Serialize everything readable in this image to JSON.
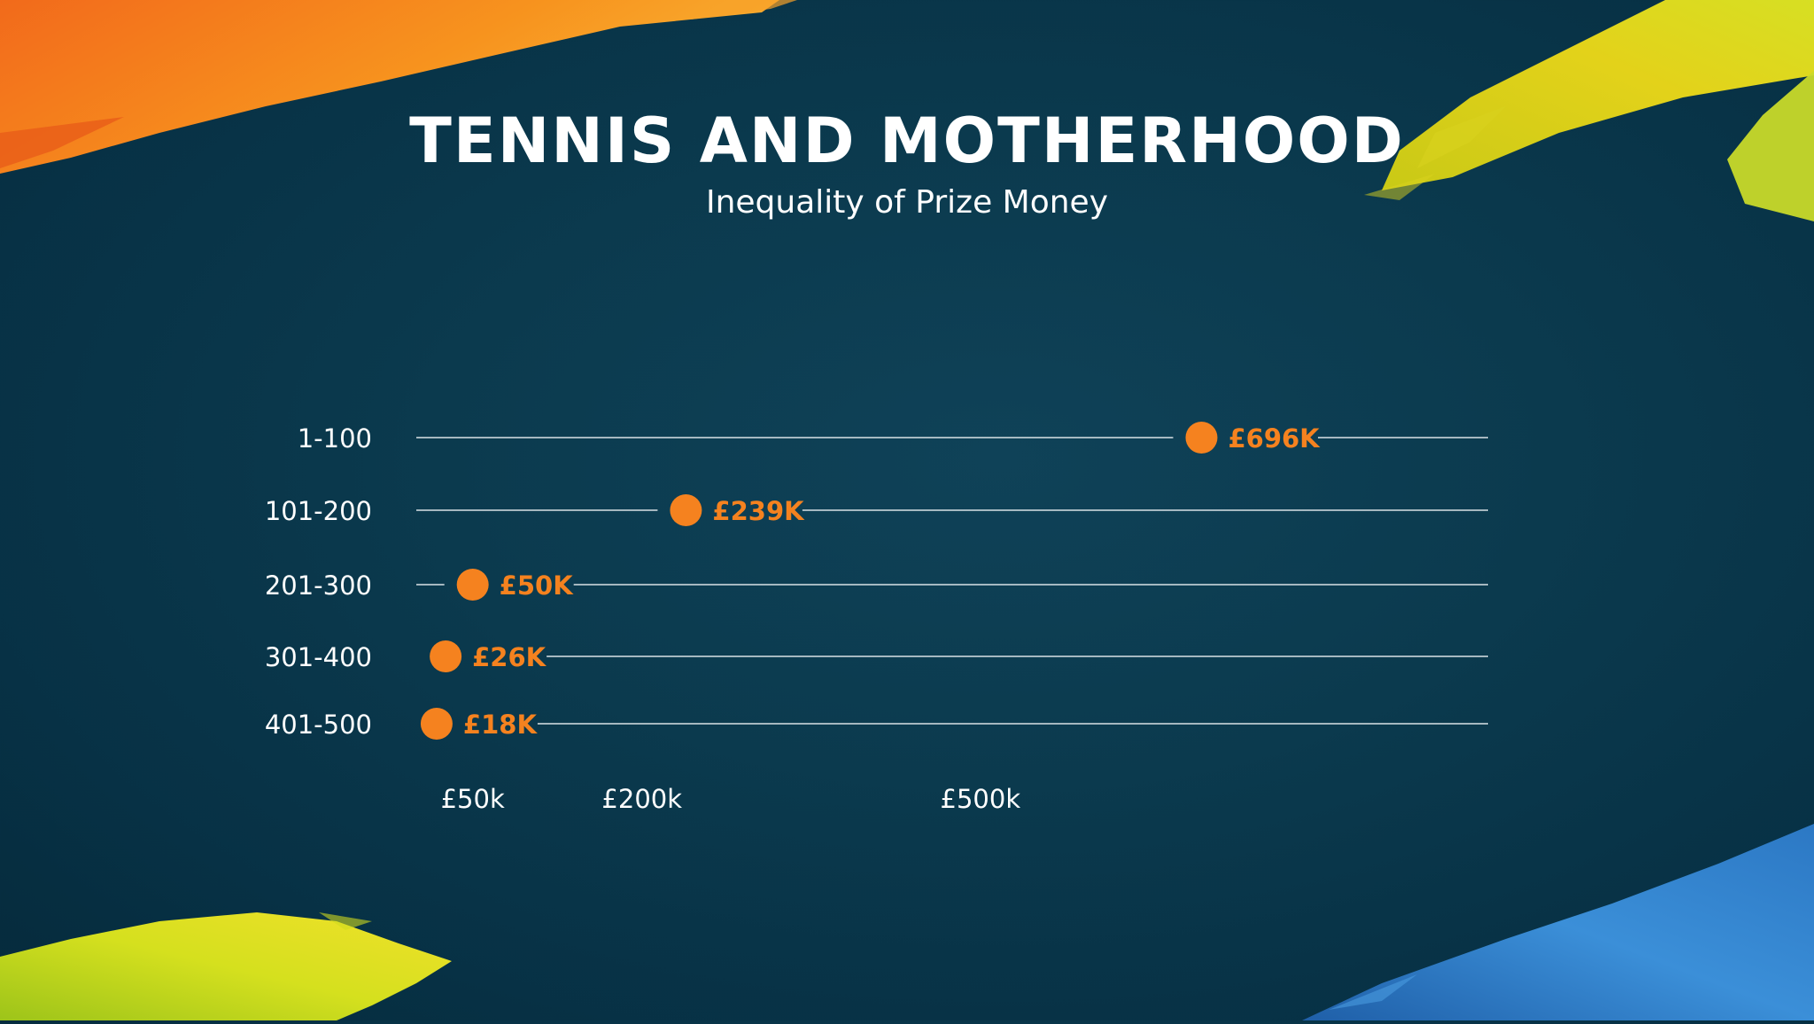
{
  "header": {
    "title": "TENNIS AND MOTHERHOOD",
    "subtitle": "Inequality of Prize Money"
  },
  "colors": {
    "background": "#0b3a4e",
    "accent": "#f5821f",
    "line": "#d9e2e6",
    "text": "#ffffff"
  },
  "chart_data": {
    "type": "scatter",
    "title": "TENNIS AND MOTHERHOOD",
    "subtitle": "Inequality of Prize Money",
    "categories": [
      "1-100",
      "101-200",
      "201-300",
      "301-400",
      "401-500"
    ],
    "values": [
      696,
      239,
      50,
      26,
      18
    ],
    "value_labels": [
      "£696K",
      "£239K",
      "£50K",
      "£26K",
      "£18K"
    ],
    "x_ticks": [
      {
        "value": 50,
        "label": "£50k"
      },
      {
        "value": 200,
        "label": "£200k"
      },
      {
        "value": 500,
        "label": "£500k"
      }
    ],
    "x_unit": "£ thousands",
    "xlim": [
      0,
      950
    ],
    "grid": false,
    "legend": "none"
  }
}
